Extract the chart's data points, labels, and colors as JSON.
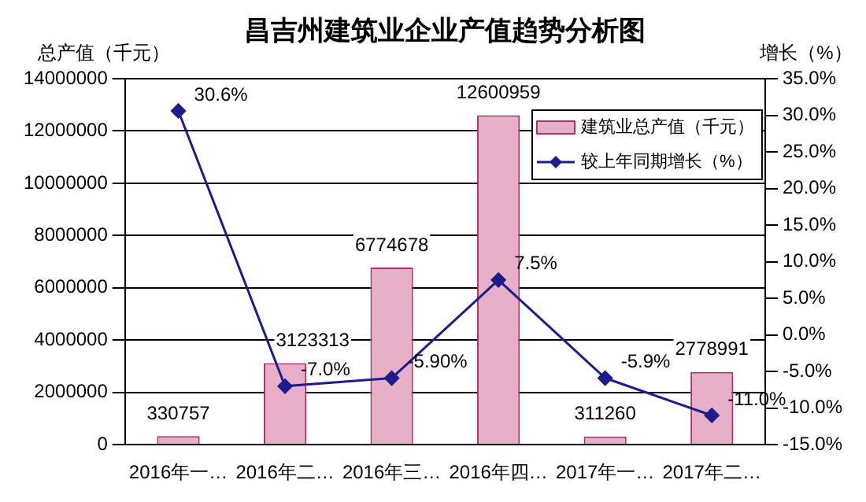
{
  "chart_data": {
    "type": "bar",
    "title": "昌吉州建筑业企业产值趋势分析图",
    "ylabel": "总产值（千元）",
    "y2label": "增长（%）",
    "categories": [
      "2016年一…",
      "2016年二…",
      "2016年三…",
      "2016年四…",
      "2017年一…",
      "2017年二…"
    ],
    "series": [
      {
        "name": "建筑业总产值（千元）",
        "color": "#e8b0c8",
        "values": [
          330757,
          3123313,
          6774678,
          12600959,
          311260,
          2778991
        ],
        "value_labels": [
          "330757",
          "3123313",
          "6774678",
          "12600959",
          "311260",
          "2778991"
        ]
      },
      {
        "name": "较上年同期增长（%）",
        "type": "line",
        "axis": "y2",
        "color": "#1c1c8c",
        "marker": "diamond",
        "line_style": "solid",
        "values": [
          30.6,
          -7.0,
          -5.9,
          7.5,
          -5.9,
          -11.0
        ],
        "value_labels": [
          "30.6%",
          "-7.0%",
          "-5.90%",
          "7.5%",
          "-5.9%",
          "-11.0%"
        ]
      }
    ],
    "ylim": [
      0,
      14000000
    ],
    "yticks": [
      0,
      2000000,
      4000000,
      6000000,
      8000000,
      10000000,
      12000000,
      14000000
    ],
    "y2lim": [
      -15,
      35
    ],
    "y2ticks": [
      {
        "value": -15,
        "label": "-15.0%"
      },
      {
        "value": -10,
        "label": "-10.0%"
      },
      {
        "value": -5,
        "label": "-5.0%"
      },
      {
        "value": 0,
        "label": "0.0%"
      },
      {
        "value": 5,
        "label": "5.0%"
      },
      {
        "value": 10,
        "label": "10.0%"
      },
      {
        "value": 15,
        "label": "15.0%"
      },
      {
        "value": 20,
        "label": "20.0%"
      },
      {
        "value": 25,
        "label": "25.0%"
      },
      {
        "value": 30,
        "label": "30.0%"
      },
      {
        "value": 35,
        "label": "35.0%"
      }
    ],
    "grid": "y",
    "legend": "top right"
  }
}
